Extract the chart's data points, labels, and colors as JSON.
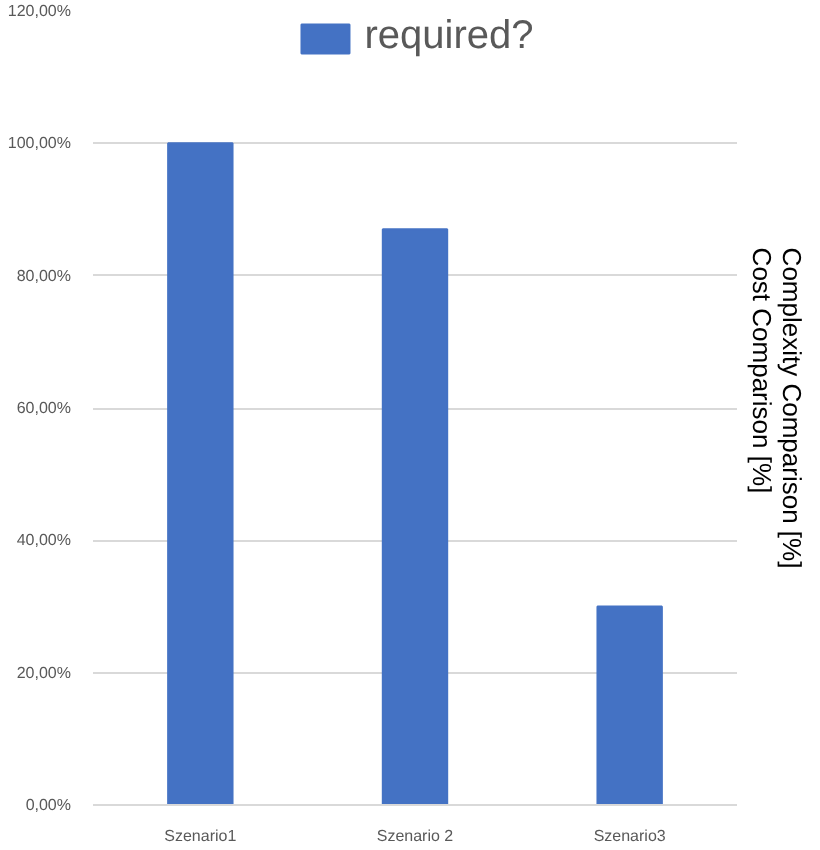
{
  "chart_data": {
    "type": "bar",
    "categories": [
      "Szenario1",
      "Szenario 2",
      "Szenario3"
    ],
    "series": [
      {
        "name": "required?",
        "color": "#4472c4",
        "values": [
          100,
          87,
          30
        ]
      }
    ],
    "ylabel": "Complexity Comparison [%]\nCost Comparison [%]",
    "ylim": [
      0,
      120
    ],
    "yticks": [
      {
        "value": 0,
        "label": "0,00%"
      },
      {
        "value": 20,
        "label": "20,00%"
      },
      {
        "value": 40,
        "label": "40,00%"
      },
      {
        "value": 60,
        "label": "60,00%"
      },
      {
        "value": 80,
        "label": "80,00%"
      },
      {
        "value": 100,
        "label": "100,00%"
      },
      {
        "value": 120,
        "label": "120,00%"
      }
    ],
    "grid": "y",
    "legend": "top"
  }
}
